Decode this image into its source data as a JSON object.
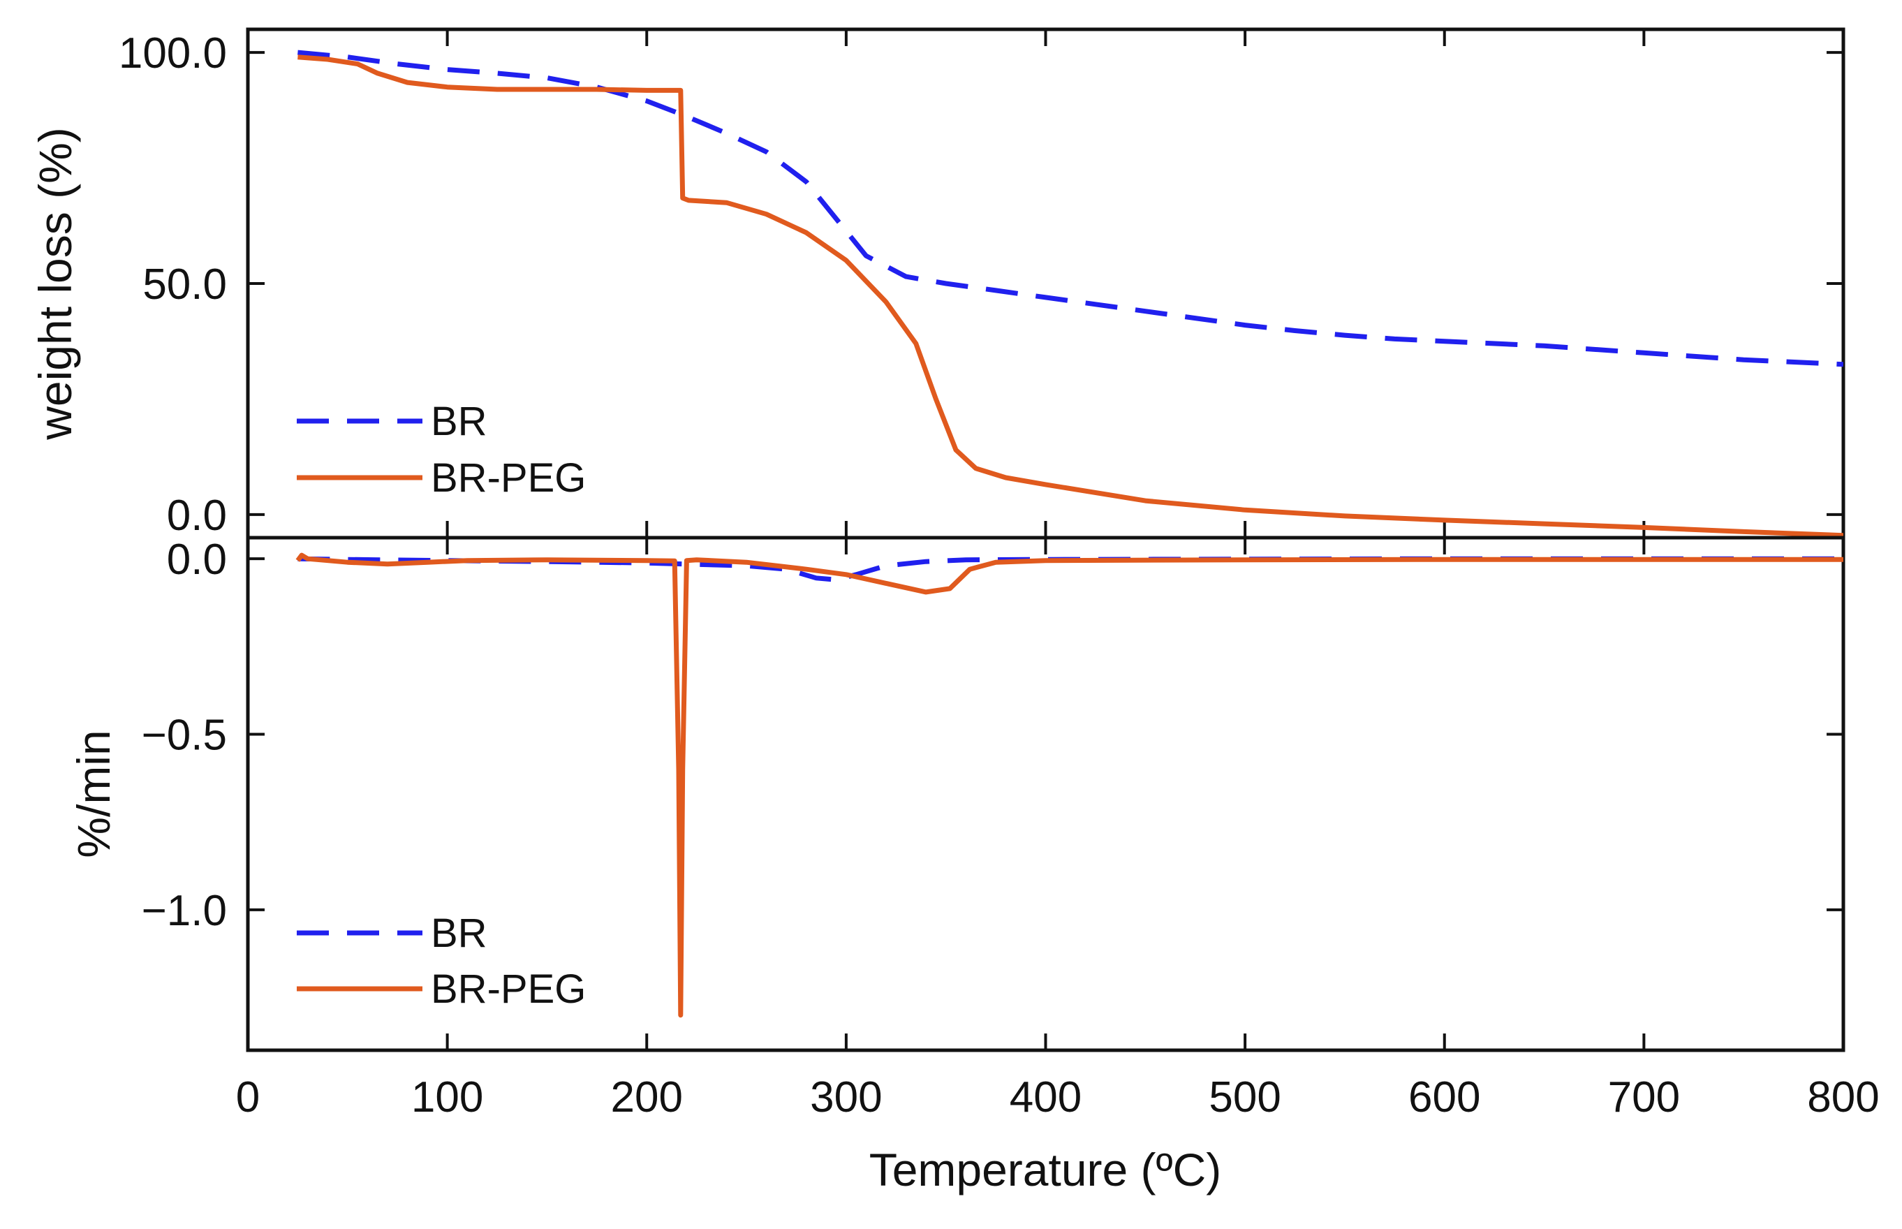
{
  "chart_data": [
    {
      "type": "line",
      "panel": "top",
      "title": "",
      "xlabel": "Temperature (ºC)",
      "ylabel": "weight loss (%)",
      "xlim": [
        0,
        800
      ],
      "ylim": [
        -5,
        105
      ],
      "yticks": [
        0,
        50,
        100
      ],
      "ytick_labels": [
        "0.0",
        "50.0",
        "100.0"
      ],
      "grid": false,
      "legend_position": "bottom-left",
      "series": [
        {
          "name": "BR",
          "color": "#2020ee",
          "style": "dashed",
          "points": [
            [
              25,
              100
            ],
            [
              50,
              99
            ],
            [
              75,
              97.5
            ],
            [
              100,
              96.3
            ],
            [
              125,
              95.5
            ],
            [
              150,
              94.5
            ],
            [
              175,
              92.5
            ],
            [
              200,
              89.5
            ],
            [
              218,
              86.5
            ],
            [
              240,
              82.5
            ],
            [
              260,
              78.5
            ],
            [
              280,
              72
            ],
            [
              295,
              64
            ],
            [
              310,
              56
            ],
            [
              330,
              51.5
            ],
            [
              350,
              50
            ],
            [
              375,
              48.5
            ],
            [
              400,
              47
            ],
            [
              425,
              45.5
            ],
            [
              450,
              44
            ],
            [
              475,
              42.5
            ],
            [
              500,
              41
            ],
            [
              525,
              39.8
            ],
            [
              550,
              38.8
            ],
            [
              575,
              38
            ],
            [
              600,
              37.5
            ],
            [
              650,
              36.5
            ],
            [
              700,
              35
            ],
            [
              750,
              33.5
            ],
            [
              800,
              32.5
            ]
          ]
        },
        {
          "name": "BR-PEG",
          "color": "#e05a1e",
          "style": "solid",
          "points": [
            [
              25,
              99
            ],
            [
              40,
              98.5
            ],
            [
              55,
              97.5
            ],
            [
              65,
              95.5
            ],
            [
              80,
              93.5
            ],
            [
              100,
              92.5
            ],
            [
              125,
              92
            ],
            [
              150,
              92
            ],
            [
              175,
              92
            ],
            [
              200,
              91.8
            ],
            [
              217,
              91.8
            ],
            [
              218,
              68.5
            ],
            [
              221,
              68
            ],
            [
              240,
              67.5
            ],
            [
              260,
              65
            ],
            [
              280,
              61
            ],
            [
              300,
              55
            ],
            [
              320,
              46
            ],
            [
              335,
              37
            ],
            [
              345,
              25
            ],
            [
              355,
              14
            ],
            [
              365,
              10
            ],
            [
              380,
              8
            ],
            [
              400,
              6.5
            ],
            [
              450,
              3
            ],
            [
              500,
              1
            ],
            [
              550,
              -0.3
            ],
            [
              600,
              -1.2
            ],
            [
              650,
              -2
            ],
            [
              700,
              -2.8
            ],
            [
              750,
              -3.7
            ],
            [
              800,
              -4.5
            ]
          ]
        }
      ]
    },
    {
      "type": "line",
      "panel": "bottom",
      "title": "",
      "xlabel": "Temperature (ºC)",
      "ylabel": "%/min",
      "xlim": [
        0,
        800
      ],
      "ylim": [
        -1.4,
        0.06
      ],
      "xticks": [
        0,
        100,
        200,
        300,
        400,
        500,
        600,
        700,
        800
      ],
      "xtick_labels": [
        "0",
        "100",
        "200",
        "300",
        "400",
        "500",
        "600",
        "700",
        "800"
      ],
      "yticks": [
        0,
        -0.5,
        -1.0
      ],
      "ytick_labels": [
        "0.0",
        "−0.5",
        "−1.0"
      ],
      "grid": false,
      "legend_position": "bottom-left",
      "series": [
        {
          "name": "BR",
          "color": "#2020ee",
          "style": "dashed",
          "points": [
            [
              25,
              0
            ],
            [
              50,
              -0.002
            ],
            [
              100,
              -0.005
            ],
            [
              150,
              -0.008
            ],
            [
              200,
              -0.012
            ],
            [
              218,
              -0.015
            ],
            [
              250,
              -0.02
            ],
            [
              270,
              -0.03
            ],
            [
              285,
              -0.055
            ],
            [
              295,
              -0.06
            ],
            [
              305,
              -0.045
            ],
            [
              320,
              -0.02
            ],
            [
              340,
              -0.008
            ],
            [
              360,
              -0.003
            ],
            [
              400,
              -0.002
            ],
            [
              500,
              -0.001
            ],
            [
              600,
              0
            ],
            [
              800,
              0
            ]
          ]
        },
        {
          "name": "BR-PEG",
          "color": "#e05a1e",
          "style": "solid",
          "points": [
            [
              25,
              -0.005
            ],
            [
              27,
              0.01
            ],
            [
              30,
              0
            ],
            [
              40,
              -0.005
            ],
            [
              50,
              -0.01
            ],
            [
              70,
              -0.015
            ],
            [
              90,
              -0.01
            ],
            [
              110,
              -0.005
            ],
            [
              150,
              -0.003
            ],
            [
              200,
              -0.005
            ],
            [
              214,
              -0.006
            ],
            [
              216,
              -0.6
            ],
            [
              217,
              -1.3
            ],
            [
              218,
              -0.6
            ],
            [
              220,
              -0.005
            ],
            [
              225,
              -0.003
            ],
            [
              250,
              -0.01
            ],
            [
              280,
              -0.03
            ],
            [
              300,
              -0.045
            ],
            [
              320,
              -0.07
            ],
            [
              340,
              -0.095
            ],
            [
              352,
              -0.085
            ],
            [
              362,
              -0.03
            ],
            [
              375,
              -0.01
            ],
            [
              400,
              -0.005
            ],
            [
              500,
              -0.003
            ],
            [
              600,
              -0.002
            ],
            [
              800,
              -0.002
            ]
          ]
        }
      ]
    }
  ]
}
